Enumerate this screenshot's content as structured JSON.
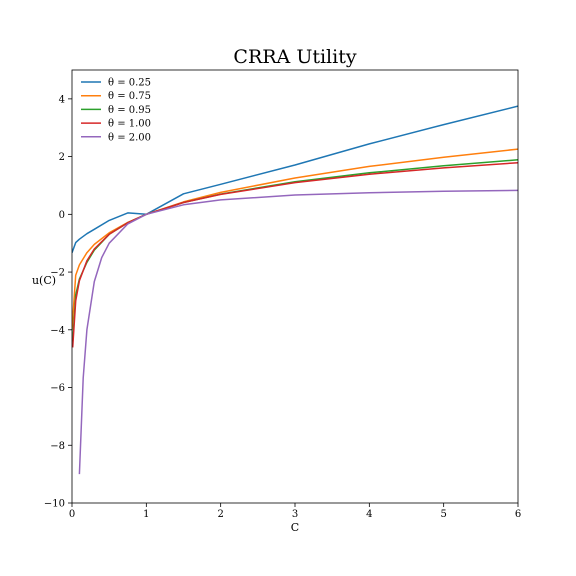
{
  "chart_data": {
    "type": "line",
    "title": "CRRA Utility",
    "xlabel": "C",
    "ylabel": "u(C)",
    "xlim": [
      0,
      6
    ],
    "ylim": [
      -10,
      5
    ],
    "x_ticks": [
      "0",
      "1",
      "2",
      "3",
      "4",
      "5",
      "6"
    ],
    "y_ticks": [
      "4",
      "2",
      "0",
      "−2",
      "−4",
      "−6",
      "−8",
      "−10"
    ],
    "grid": false,
    "legend_position": "top-left",
    "series": [
      {
        "name": "θ = 0.25",
        "color": "#1f77b4",
        "x": [
          0.0,
          0.05,
          0.1,
          0.2,
          0.3,
          0.5,
          0.75,
          1.0,
          1.5,
          2.0,
          3.0,
          4.0,
          5.0,
          6.0
        ],
        "y": [
          -1.33,
          -0.98,
          -0.86,
          -0.67,
          -0.52,
          -0.21,
          0.05,
          0.0,
          0.71,
          1.04,
          1.71,
          2.44,
          3.11,
          3.75
        ]
      },
      {
        "name": "θ = 0.75",
        "color": "#ff7f0e",
        "x": [
          0.0,
          0.05,
          0.1,
          0.2,
          0.3,
          0.5,
          0.75,
          1.0,
          1.5,
          2.0,
          3.0,
          4.0,
          5.0,
          6.0
        ],
        "y": [
          -4.0,
          -2.11,
          -1.75,
          -1.33,
          -1.04,
          -0.64,
          -0.28,
          0.0,
          0.43,
          0.76,
          1.26,
          1.66,
          1.98,
          2.26
        ]
      },
      {
        "name": "θ = 0.95",
        "color": "#2ca02c",
        "x": [
          0.01,
          0.05,
          0.1,
          0.2,
          0.3,
          0.5,
          0.75,
          1.0,
          1.5,
          2.0,
          3.0,
          4.0,
          5.0,
          6.0
        ],
        "y": [
          -4.41,
          -2.79,
          -2.24,
          -1.66,
          -1.24,
          -0.69,
          -0.29,
          0.0,
          0.41,
          0.7,
          1.13,
          1.44,
          1.68,
          1.89
        ]
      },
      {
        "name": "θ = 1.00",
        "color": "#d62728",
        "x": [
          0.01,
          0.05,
          0.1,
          0.2,
          0.3,
          0.5,
          0.75,
          1.0,
          1.5,
          2.0,
          3.0,
          4.0,
          5.0,
          6.0
        ],
        "y": [
          -4.61,
          -3.0,
          -2.3,
          -1.61,
          -1.2,
          -0.69,
          -0.29,
          0.0,
          0.41,
          0.69,
          1.1,
          1.39,
          1.61,
          1.79
        ]
      },
      {
        "name": "θ = 2.00",
        "color": "#9467bd",
        "x": [
          0.1,
          0.15,
          0.2,
          0.3,
          0.4,
          0.5,
          0.75,
          1.0,
          1.5,
          2.0,
          3.0,
          4.0,
          5.0,
          6.0
        ],
        "y": [
          -9.0,
          -5.67,
          -4.0,
          -2.33,
          -1.5,
          -1.0,
          -0.33,
          0.0,
          0.33,
          0.5,
          0.67,
          0.75,
          0.8,
          0.83
        ]
      }
    ]
  }
}
